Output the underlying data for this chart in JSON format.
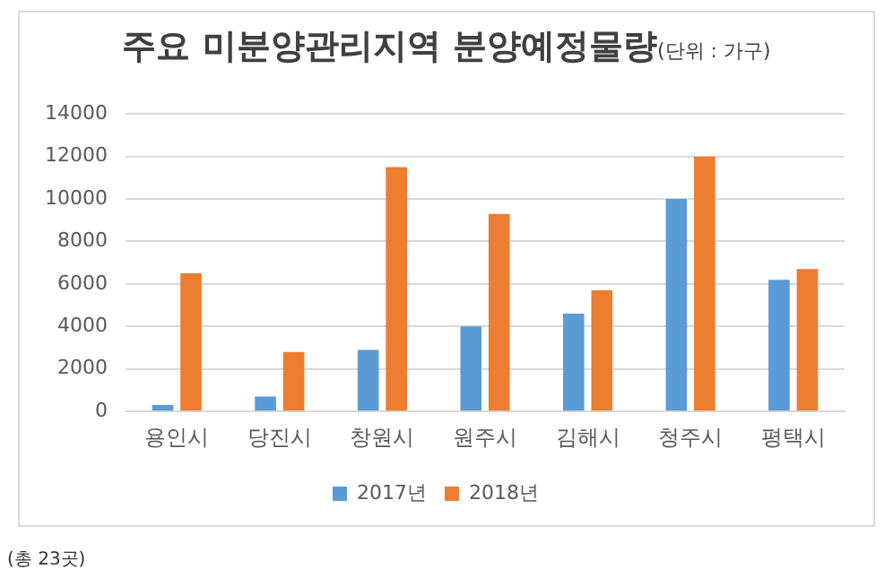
{
  "chart_data": {
    "type": "bar",
    "title": "주요 미분양관리지역 분양예정물량",
    "subtitle": "(단위 : 가구)",
    "categories": [
      "용인시",
      "당진시",
      "창원시",
      "원주시",
      "김해시",
      "청주시",
      "평택시"
    ],
    "series": [
      {
        "name": "2017년",
        "color": "#5b9bd5",
        "values": [
          300,
          700,
          2900,
          4000,
          4600,
          10000,
          6200
        ]
      },
      {
        "name": "2018년",
        "color": "#ed7d31",
        "values": [
          6500,
          2800,
          11500,
          9300,
          5700,
          12000,
          6700
        ]
      }
    ],
    "ylim": [
      0,
      14000
    ],
    "yticks": [
      0,
      2000,
      4000,
      6000,
      8000,
      10000,
      12000,
      14000
    ],
    "grid": "y",
    "legend": "bottom",
    "annotations": [
      "(총 23곳)"
    ]
  }
}
